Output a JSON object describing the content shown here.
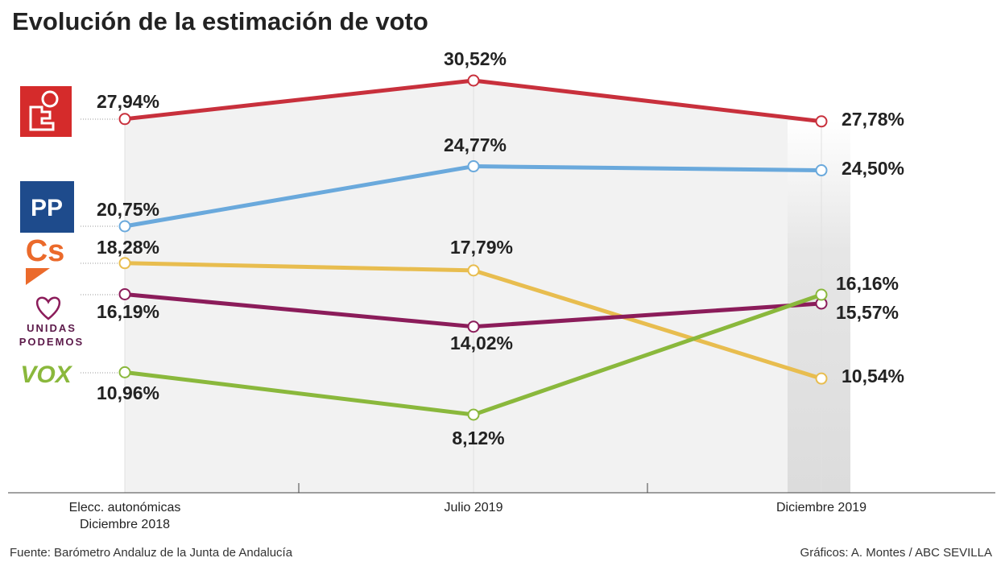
{
  "chart_data": {
    "type": "line",
    "title": "Evolución de la estimación de voto",
    "categories": [
      "Elecc. autonómicas Diciembre 2018",
      "Julio 2019",
      "Diciembre 2019"
    ],
    "series": [
      {
        "color": "#c8303c",
        "values": [
          27.94,
          30.52,
          27.78
        ],
        "value_labels": [
          "27,94%",
          "30,52%",
          "27,78%"
        ]
      },
      {
        "name": "PP",
        "color": "#6aa9dc",
        "values": [
          20.75,
          24.77,
          24.5
        ],
        "value_labels": [
          "20,75%",
          "24,77%",
          "24,50%"
        ]
      },
      {
        "name": "Cs",
        "color": "#e8bd4f",
        "values": [
          18.28,
          17.79,
          10.54
        ],
        "value_labels": [
          "18,28%",
          "17,79%",
          "10,54%"
        ]
      },
      {
        "name": "UNIDAS PODEMOS",
        "color": "#8b1c5a",
        "values": [
          16.19,
          14.02,
          15.57
        ],
        "value_labels": [
          "16,19%",
          "14,02%",
          "15,57%"
        ]
      },
      {
        "name": "VOX",
        "color": "#8ab83c",
        "values": [
          10.96,
          8.12,
          16.16
        ],
        "value_labels": [
          "10,96%",
          "8,12%",
          "16,16%"
        ]
      }
    ],
    "source": "Fuente: Barómetro Andaluz de la Junta de Andalucía",
    "credit": "Gráficos: A. Montes / ABC SEVILLA"
  }
}
